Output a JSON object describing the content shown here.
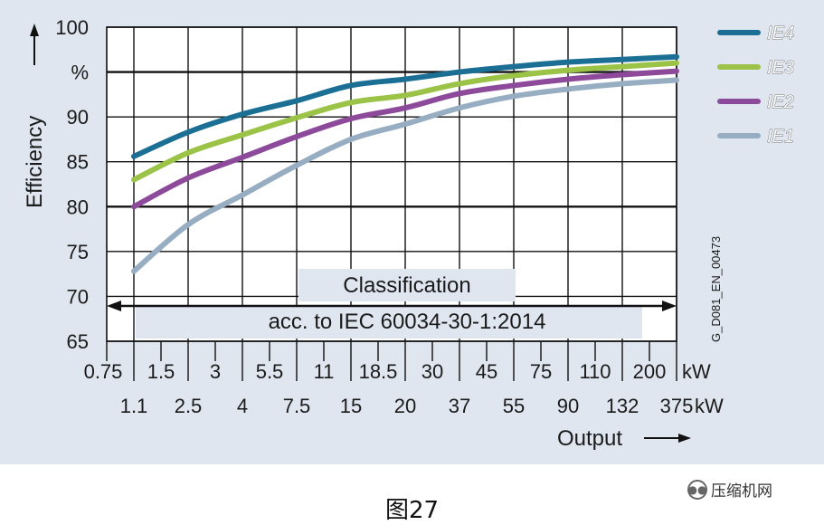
{
  "chart_data": {
    "type": "line",
    "xlabel": "Output",
    "ylabel": "Efficiency",
    "y_unit": "%",
    "ylim": [
      65,
      100
    ],
    "y_ticks": [
      "100",
      "%",
      "90",
      "85",
      "80",
      "75",
      "70",
      "65"
    ],
    "x_ticks_top": [
      "0.75",
      "1.5",
      "3",
      "5.5",
      "11",
      "18.5",
      "30",
      "45",
      "75",
      "110",
      "200"
    ],
    "x_ticks_bottom": [
      "1.1",
      "2.5",
      "4",
      "7.5",
      "15",
      "20",
      "37",
      "55",
      "90",
      "132",
      "375"
    ],
    "x_unit": "kW",
    "x_scale": "categorical",
    "annotation_line1": "Classification",
    "annotation_line2": "acc. to IEC 60034-30-1:2014",
    "code": "G_D081_EN_00473",
    "grid": true,
    "legend": "right",
    "x": [
      "1.1",
      "2.5",
      "4",
      "7.5",
      "15",
      "20",
      "37",
      "55",
      "90",
      "132",
      "375"
    ],
    "series": [
      {
        "name": "IE4",
        "color": "#1b6f95",
        "values": [
          85.6,
          88.3,
          90.3,
          91.8,
          93.5,
          94.2,
          95.0,
          95.6,
          96.1,
          96.4,
          96.7
        ]
      },
      {
        "name": "IE3",
        "color": "#9bc348",
        "values": [
          83.0,
          86.0,
          88.0,
          89.9,
          91.6,
          92.4,
          93.7,
          94.6,
          95.2,
          95.6,
          96.0
        ]
      },
      {
        "name": "IE2",
        "color": "#8e4a9a",
        "values": [
          80.0,
          83.2,
          85.5,
          87.8,
          89.8,
          91.0,
          92.6,
          93.5,
          94.2,
          94.7,
          95.1
        ]
      },
      {
        "name": "IE1",
        "color": "#97adc1",
        "values": [
          72.8,
          78.0,
          81.3,
          84.6,
          87.5,
          89.2,
          91.0,
          92.3,
          93.1,
          93.7,
          94.1
        ]
      }
    ]
  },
  "caption": "图27",
  "watermark": "压缩机网"
}
